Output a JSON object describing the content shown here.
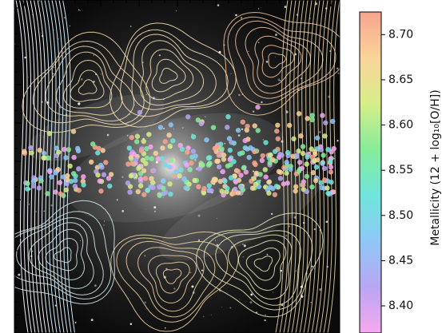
{
  "chart_data": {
    "type": "colorbar",
    "colorbar_label": "Metallicity (12 + log₁₀[O/H])",
    "ylim": [
      8.37,
      8.725
    ],
    "yticks": [
      {
        "value": 8.4,
        "label": "8.40"
      },
      {
        "value": 8.45,
        "label": "8.45"
      },
      {
        "value": 8.5,
        "label": "8.50"
      },
      {
        "value": 8.55,
        "label": "8.55"
      },
      {
        "value": 8.6,
        "label": "8.60"
      },
      {
        "value": 8.65,
        "label": "8.65"
      },
      {
        "value": 8.7,
        "label": "8.70"
      }
    ],
    "colormap": [
      "#f7a8f0",
      "#b9a6f2",
      "#8fc7f7",
      "#6fe6dc",
      "#86ec9a",
      "#d6ee8a",
      "#fbd49a",
      "#f7a58e"
    ]
  }
}
